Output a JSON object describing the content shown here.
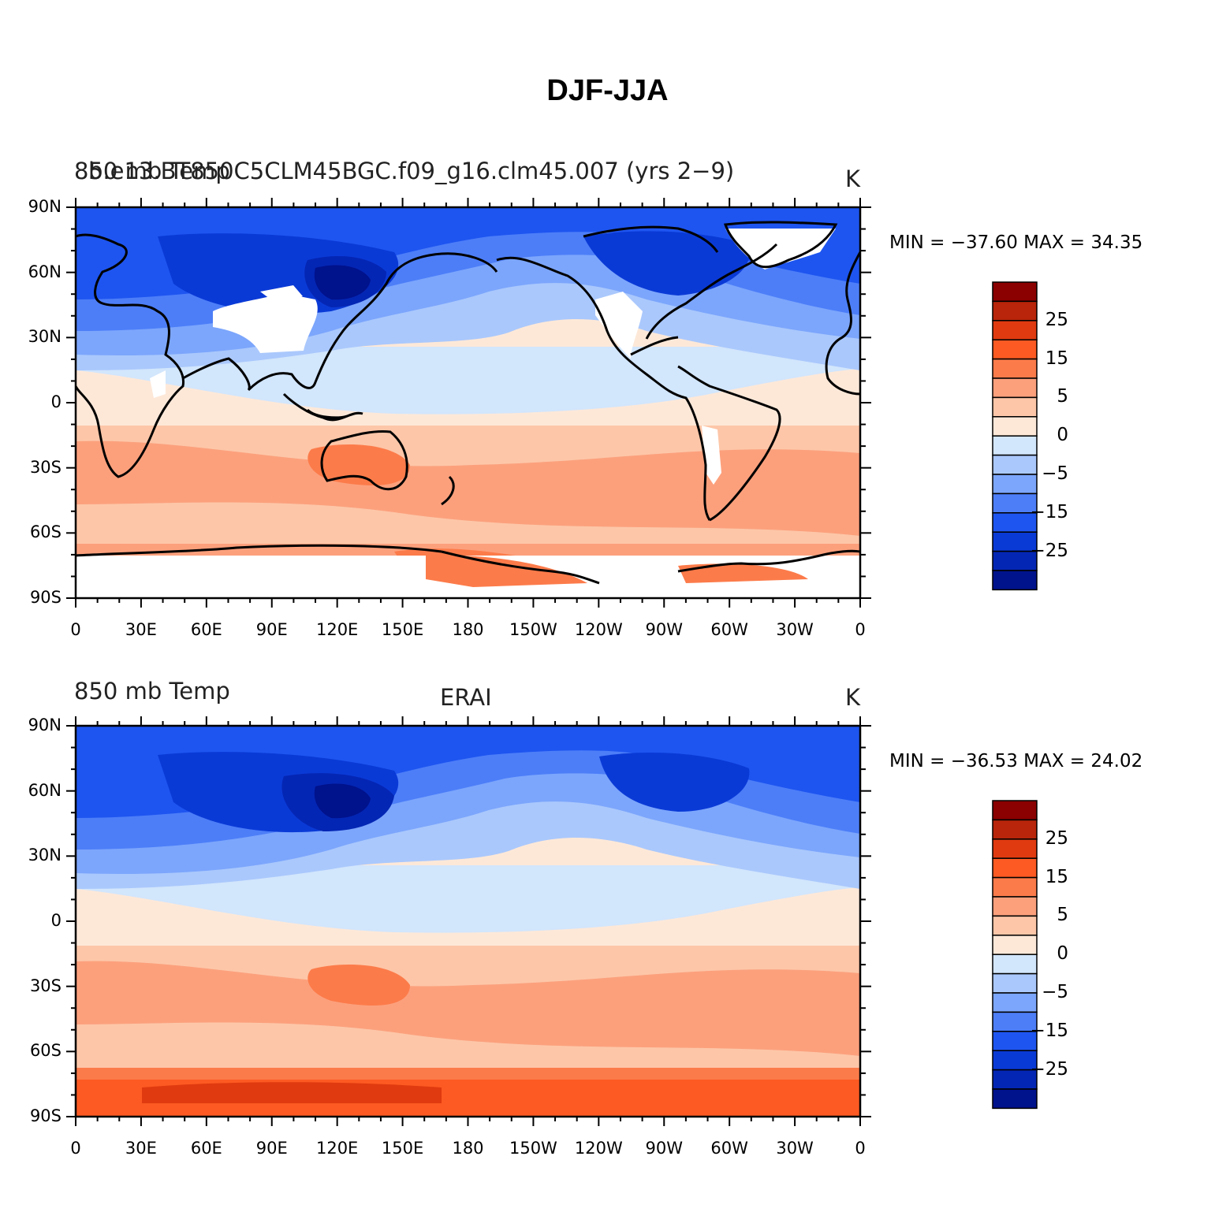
{
  "figure_title": "DJF-JJA",
  "map_data": {
    "projection": "cylindrical equidistant",
    "lon_range": [
      0,
      360
    ],
    "lat_range": [
      -90,
      90
    ],
    "lat_labels": [
      "90N",
      "60N",
      "30N",
      "0",
      "30S",
      "60S",
      "90S"
    ],
    "lon_labels": [
      "0",
      "30E",
      "60E",
      "90E",
      "120E",
      "150E",
      "180",
      "150W",
      "120W",
      "90W",
      "60W",
      "30W",
      "0"
    ],
    "coastlines": true
  },
  "colorbar": {
    "colors": [
      "#8b0000",
      "#b8250a",
      "#e03a10",
      "#fc5a22",
      "#fc7b4a",
      "#fca07c",
      "#fdc6a8",
      "#fde8d8",
      "#d2e6fc",
      "#aac8fc",
      "#7ca6fc",
      "#4d7ef8",
      "#1e55f0",
      "#0a3ad6",
      "#0426b4",
      "#00128c"
    ],
    "labels": [
      "25",
      "15",
      "5",
      "0",
      "−5",
      "−15",
      "−25"
    ]
  },
  "panels": [
    {
      "left_title": "850 mb Temp",
      "center_title": "",
      "case_title": "b.e13.BT850C5CLM45BGC.f09_g16.clm45.007 (yrs 2−9)",
      "right_title": "K",
      "min_max": "MIN = −37.60  MAX =   34.35"
    },
    {
      "left_title": "850 mb Temp",
      "center_title": "ERAI",
      "case_title": "",
      "right_title": "K",
      "min_max": "MIN = −36.53  MAX =   24.02"
    }
  ]
}
